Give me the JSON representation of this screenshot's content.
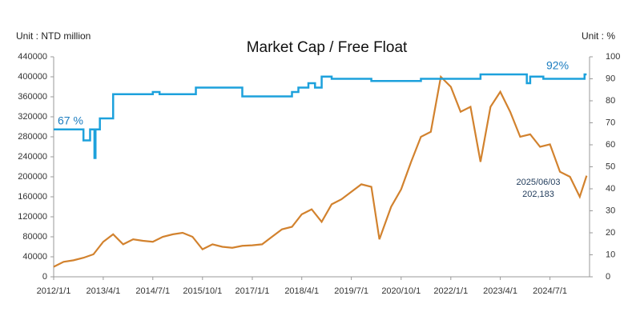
{
  "chart_data": {
    "type": "line",
    "title": "Market Cap / Free Float",
    "y_unit": "Unit : NTD million",
    "y2_unit": "Unit : %",
    "xlim": [
      "2012/1/1",
      "2025/6/30"
    ],
    "xticks": [
      "2012/1/1",
      "2013/4/1",
      "2014/7/1",
      "2015/10/1",
      "2017/1/1",
      "2018/4/1",
      "2019/7/1",
      "2020/10/1",
      "2022/1/1",
      "2023/4/1",
      "2024/7/1"
    ],
    "ylim": [
      0,
      440000
    ],
    "yticks": [
      0,
      40000,
      80000,
      120000,
      160000,
      200000,
      240000,
      280000,
      320000,
      360000,
      400000,
      440000
    ],
    "y2lim": [
      0,
      100
    ],
    "y2ticks": [
      0,
      10,
      20,
      30,
      40,
      50,
      60,
      70,
      80,
      90,
      100
    ],
    "grid": false,
    "series": [
      {
        "color": "#d2822e",
        "axis": "y",
        "shape": "linear",
        "x": [
          "2012/1/1",
          "2012/4/1",
          "2012/7/1",
          "2012/10/1",
          "2013/1/1",
          "2013/4/1",
          "2013/7/1",
          "2013/10/1",
          "2014/1/1",
          "2014/4/1",
          "2014/7/1",
          "2014/10/1",
          "2015/1/1",
          "2015/4/1",
          "2015/7/1",
          "2015/10/1",
          "2016/1/1",
          "2016/4/1",
          "2016/7/1",
          "2016/10/1",
          "2017/1/1",
          "2017/4/1",
          "2017/7/1",
          "2017/10/1",
          "2018/1/1",
          "2018/4/1",
          "2018/7/1",
          "2018/10/1",
          "2019/1/1",
          "2019/4/1",
          "2019/7/1",
          "2019/10/1",
          "2020/1/1",
          "2020/3/15",
          "2020/7/1",
          "2020/10/1",
          "2021/1/1",
          "2021/4/1",
          "2021/7/1",
          "2021/10/1",
          "2022/1/1",
          "2022/4/1",
          "2022/7/1",
          "2022/10/1",
          "2023/1/1",
          "2023/4/1",
          "2023/7/1",
          "2023/10/1",
          "2024/1/1",
          "2024/4/1",
          "2024/7/1",
          "2024/10/1",
          "2025/1/1",
          "2025/4/1",
          "2025/6/3"
        ],
        "values": [
          20000,
          30000,
          33000,
          38000,
          45000,
          70000,
          85000,
          65000,
          75000,
          72000,
          70000,
          80000,
          85000,
          88000,
          80000,
          55000,
          65000,
          60000,
          58000,
          62000,
          63000,
          65000,
          80000,
          95000,
          100000,
          125000,
          135000,
          110000,
          145000,
          155000,
          170000,
          185000,
          180000,
          75000,
          140000,
          175000,
          230000,
          280000,
          290000,
          400000,
          380000,
          330000,
          340000,
          230000,
          340000,
          370000,
          330000,
          280000,
          285000,
          260000,
          265000,
          210000,
          200000,
          160000,
          202183
        ]
      },
      {
        "color": "#1da1dc",
        "axis": "y2",
        "shape": "step",
        "x": [
          "2012/1/1",
          "2012/10/1",
          "2012/12/1",
          "2013/1/10",
          "2013/1/20",
          "2013/3/1",
          "2013/7/1",
          "2014/7/1",
          "2014/9/1",
          "2015/8/1",
          "2016/10/1",
          "2018/1/1",
          "2018/3/1",
          "2018/6/1",
          "2018/8/1",
          "2018/10/1",
          "2019/1/1",
          "2020/1/1",
          "2021/4/1",
          "2022/10/1",
          "2023/12/1",
          "2024/1/1",
          "2024/5/1",
          "2025/5/15",
          "2025/6/3"
        ],
        "values": [
          67,
          62,
          67,
          54,
          67,
          72,
          83,
          84,
          83,
          86,
          82,
          84,
          86,
          88,
          86,
          91,
          90,
          89,
          90,
          92,
          88,
          91,
          90,
          92,
          92
        ]
      }
    ],
    "annotations": [
      "67 %",
      "92%",
      "2025/06/03",
      "202,183"
    ]
  }
}
